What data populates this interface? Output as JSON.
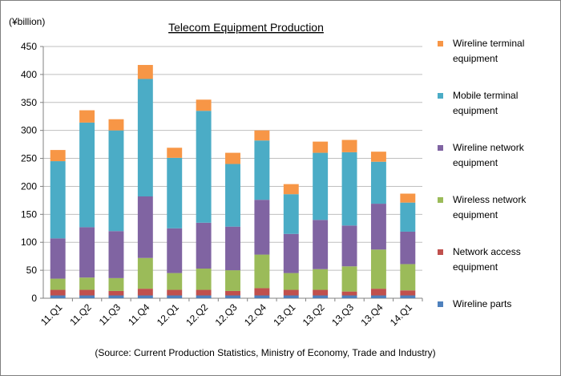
{
  "chart_data": {
    "type": "bar",
    "stacked": true,
    "title": "Telecom Equipment Production",
    "unit_label": "(¥billion)",
    "ylim": [
      0,
      450
    ],
    "yticks": [
      0,
      50,
      100,
      150,
      200,
      250,
      300,
      350,
      400,
      450
    ],
    "grid": true,
    "legend_position": "right",
    "categories": [
      "11.Q1",
      "11.Q2",
      "11.Q3",
      "11.Q4",
      "12.Q1",
      "12.Q2",
      "12.Q3",
      "12.Q4",
      "13.Q1",
      "13.Q2",
      "13.Q3",
      "13.Q4",
      "14.Q1"
    ],
    "series": [
      {
        "name": "Wireline parts",
        "color": "#4f81bd",
        "values": [
          5,
          5,
          5,
          5,
          5,
          5,
          5,
          5,
          5,
          5,
          5,
          5,
          5
        ]
      },
      {
        "name": "Network access equipment",
        "color": "#c0504d",
        "values": [
          10,
          10,
          8,
          12,
          10,
          10,
          8,
          13,
          10,
          10,
          7,
          12,
          9
        ]
      },
      {
        "name": "Wireless network equipment",
        "color": "#9bbb59",
        "values": [
          20,
          22,
          23,
          55,
          30,
          38,
          37,
          60,
          30,
          37,
          45,
          70,
          47
        ]
      },
      {
        "name": "Wireline network equipment",
        "color": "#8064a2",
        "values": [
          72,
          90,
          84,
          110,
          80,
          82,
          78,
          98,
          70,
          88,
          73,
          82,
          58
        ]
      },
      {
        "name": "Mobile terminal equipment",
        "color": "#4bacc6",
        "values": [
          138,
          187,
          180,
          210,
          126,
          200,
          112,
          106,
          71,
          120,
          131,
          75,
          52
        ]
      },
      {
        "name": "Wireline terminal equipment",
        "color": "#f79646",
        "values": [
          20,
          22,
          20,
          25,
          18,
          20,
          20,
          18,
          18,
          20,
          22,
          18,
          16
        ]
      }
    ],
    "source": "(Source: Current Production Statistics, Ministry of Economy, Trade and Industry)"
  }
}
